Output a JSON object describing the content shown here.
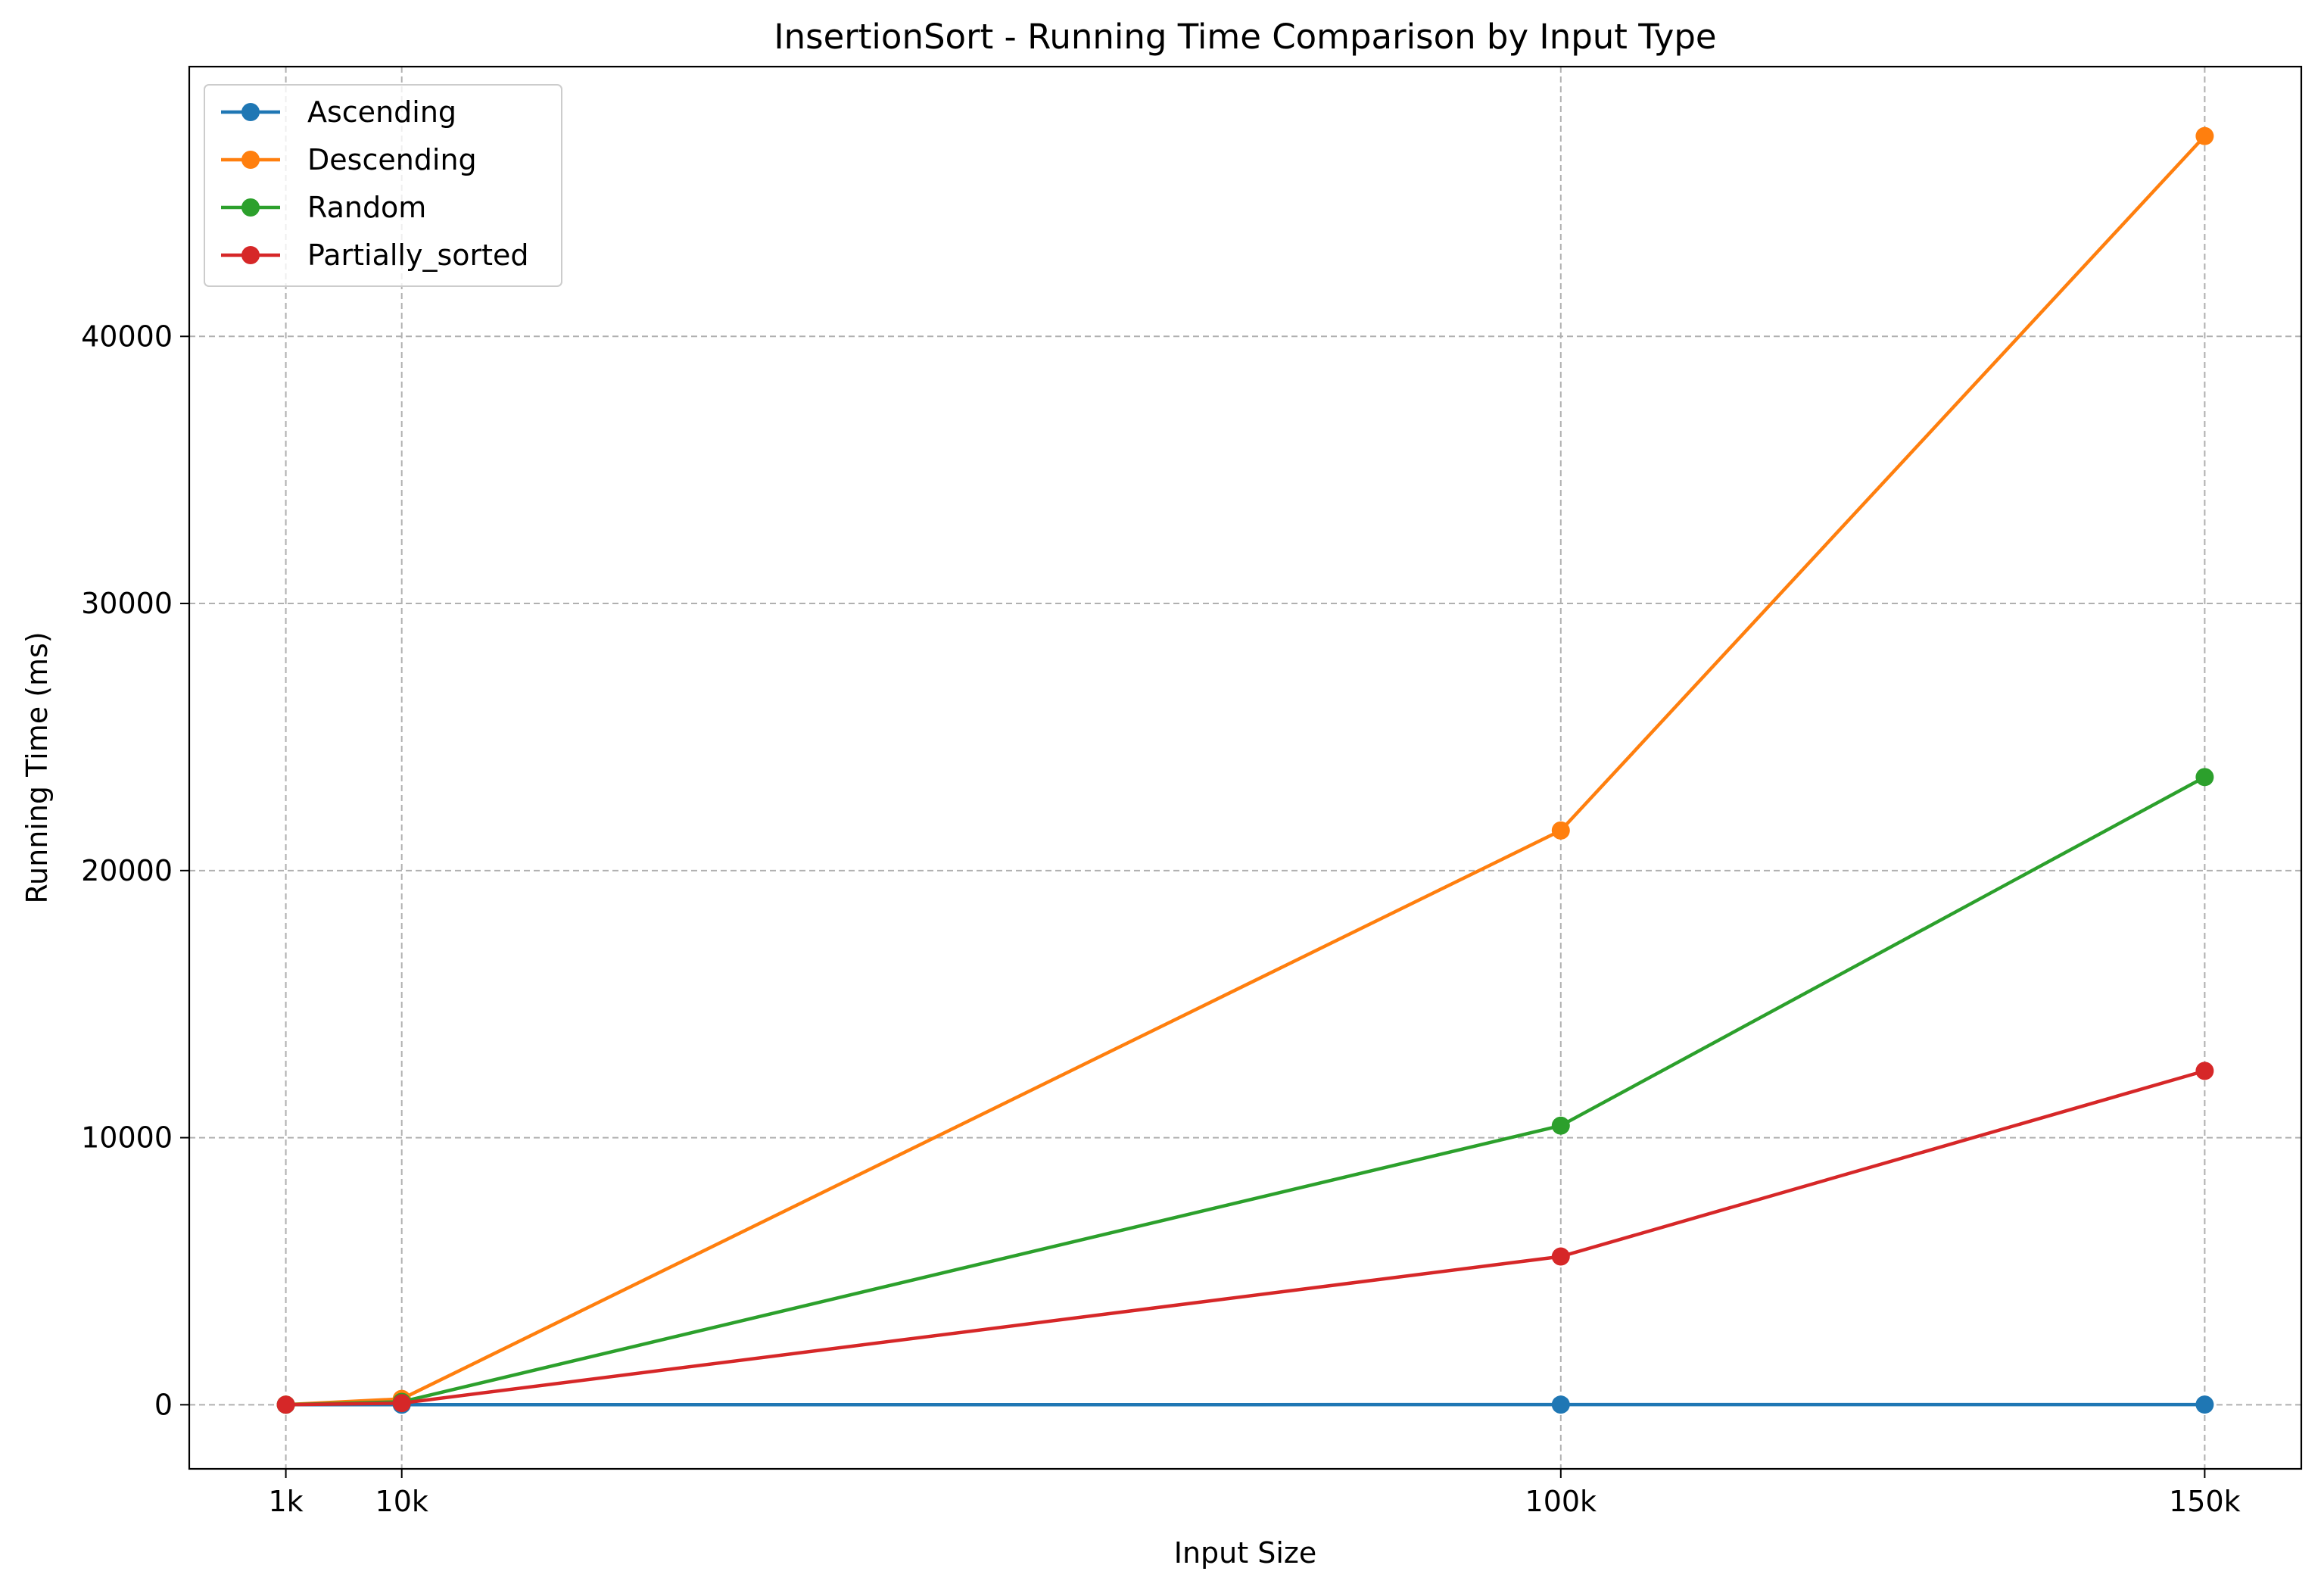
{
  "chart_data": {
    "type": "line",
    "title": "InsertionSort - Running Time Comparison by Input Type",
    "xlabel": "Input Size",
    "ylabel": "Running Time (ms)",
    "x": [
      1000,
      10000,
      100000,
      150000
    ],
    "x_tick_labels": [
      "1k",
      "10k",
      "100k",
      "150k"
    ],
    "y_ticks": [
      0,
      10000,
      20000,
      30000,
      40000
    ],
    "y_tick_labels": [
      "0",
      "10000",
      "20000",
      "30000",
      "40000"
    ],
    "xlim": [
      -6500,
      157500
    ],
    "ylim": [
      -2400,
      50100
    ],
    "grid": true,
    "legend_position": "top-left",
    "series": [
      {
        "name": "Ascending",
        "color": "#1f77b4",
        "values": [
          1,
          2,
          5,
          7
        ]
      },
      {
        "name": "Descending",
        "color": "#ff7f0e",
        "values": [
          5,
          220,
          21500,
          47500
        ]
      },
      {
        "name": "Random",
        "color": "#2ca02c",
        "values": [
          3,
          110,
          10450,
          23500
        ]
      },
      {
        "name": "Partially_sorted",
        "color": "#d62728",
        "values": [
          2,
          60,
          5550,
          12500
        ]
      }
    ]
  }
}
